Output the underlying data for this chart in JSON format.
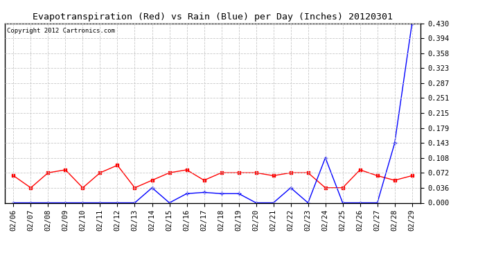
{
  "title": "Evapotranspiration (Red) vs Rain (Blue) per Day (Inches) 20120301",
  "copyright": "Copyright 2012 Cartronics.com",
  "dates": [
    "02/06",
    "02/07",
    "02/08",
    "02/09",
    "02/10",
    "02/11",
    "02/12",
    "02/13",
    "02/14",
    "02/15",
    "02/16",
    "02/17",
    "02/18",
    "02/19",
    "02/20",
    "02/21",
    "02/22",
    "02/23",
    "02/24",
    "02/25",
    "02/26",
    "02/27",
    "02/28",
    "02/29"
  ],
  "red_values": [
    0.065,
    0.036,
    0.072,
    0.079,
    0.036,
    0.072,
    0.09,
    0.036,
    0.054,
    0.072,
    0.079,
    0.054,
    0.072,
    0.072,
    0.072,
    0.065,
    0.072,
    0.072,
    0.036,
    0.036,
    0.079,
    0.065,
    0.054,
    0.065
  ],
  "blue_values": [
    0.0,
    0.0,
    0.0,
    0.0,
    0.0,
    0.0,
    0.0,
    0.0,
    0.036,
    0.0,
    0.022,
    0.025,
    0.022,
    0.022,
    0.0,
    0.0,
    0.036,
    0.0,
    0.108,
    0.0,
    0.0,
    0.0,
    0.143,
    0.43
  ],
  "ylim": [
    0.0,
    0.43
  ],
  "yticks": [
    0.0,
    0.036,
    0.072,
    0.108,
    0.143,
    0.179,
    0.215,
    0.251,
    0.287,
    0.323,
    0.358,
    0.394,
    0.43
  ],
  "red_color": "#ff0000",
  "blue_color": "#0000ff",
  "bg_color": "#ffffff",
  "grid_color": "#c8c8c8",
  "title_fontsize": 9.5,
  "copyright_fontsize": 6.5,
  "tick_fontsize": 7.5
}
